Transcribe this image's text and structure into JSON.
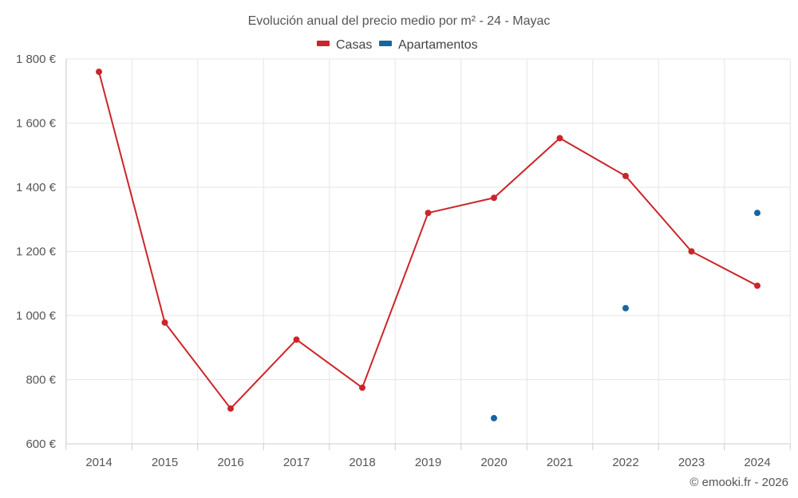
{
  "chart_data": {
    "type": "line",
    "title": "Evolución anual del precio medio por m² - 24 - Mayac",
    "categories": [
      "2014",
      "2015",
      "2016",
      "2017",
      "2018",
      "2019",
      "2020",
      "2021",
      "2022",
      "2023",
      "2024"
    ],
    "series": [
      {
        "name": "Casas",
        "color": "#cc2529",
        "style": "line-with-markers",
        "values": [
          1760,
          978,
          710,
          925,
          775,
          1320,
          1367,
          1553,
          1435,
          1200,
          1093
        ]
      },
      {
        "name": "Apartamentos",
        "color": "#1565a0",
        "style": "markers-only",
        "values": [
          null,
          null,
          null,
          null,
          null,
          null,
          680,
          null,
          1023,
          null,
          1320
        ]
      }
    ],
    "ylim": [
      600,
      1800
    ],
    "yticks": [
      600,
      800,
      1000,
      1200,
      1400,
      1600,
      1800
    ],
    "ytick_labels": [
      "600 €",
      "800 €",
      "1 000 €",
      "1 200 €",
      "1 400 €",
      "1 600 €",
      "1 800 €"
    ],
    "xlabel": "",
    "ylabel": "",
    "grid": true,
    "legend_position": "top-center"
  },
  "credit": "© emooki.fr - 2026"
}
